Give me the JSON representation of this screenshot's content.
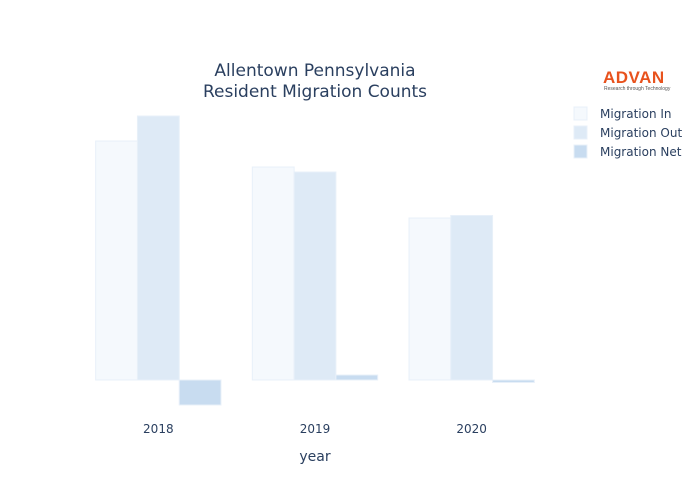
{
  "logo": {
    "text": "ADVAN",
    "tagline": "Research through Technology",
    "color": "#e8521d"
  },
  "chart_data": {
    "type": "bar",
    "title": [
      "Allentown Pennsylvania",
      "Resident Migration Counts"
    ],
    "xlabel": "year",
    "ylabel": "",
    "categories": [
      "2018",
      "2019",
      "2020"
    ],
    "series": [
      {
        "name": "Migration In",
        "values": [
          4780,
          4260,
          3240
        ],
        "color": "#f5f9fd"
      },
      {
        "name": "Migration Out",
        "values": [
          5280,
          4160,
          3290
        ],
        "color": "#deeaf6"
      },
      {
        "name": "Migration Net",
        "values": [
          -500,
          100,
          -50
        ],
        "color": "#c8dcf0"
      }
    ],
    "ylim": [
      -600,
      5300
    ],
    "grid": false,
    "show_y_ticks": false,
    "legend_position": "top-right"
  }
}
